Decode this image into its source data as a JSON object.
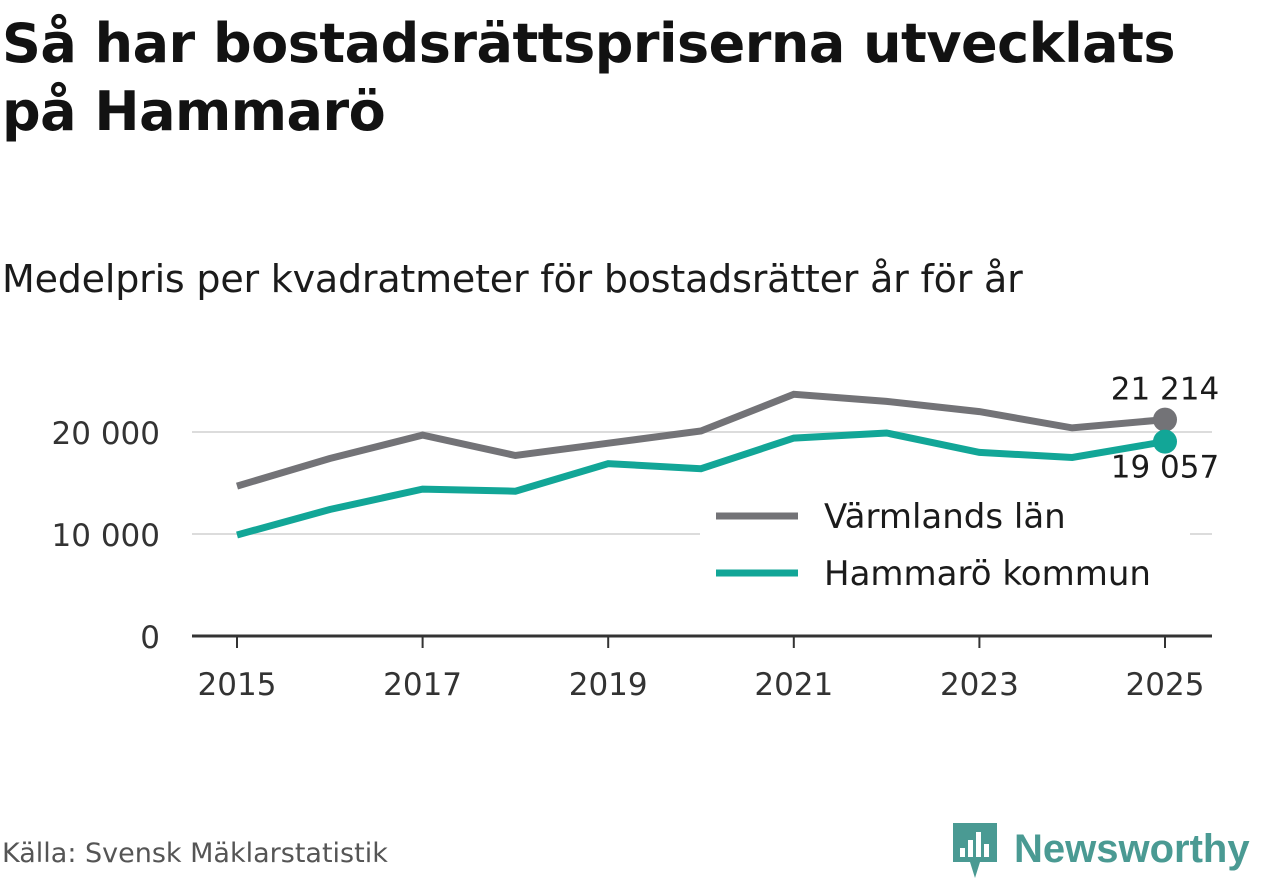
{
  "title": "Så har bostadsrättspriserna utvecklats på Hammarö",
  "subtitle": "Medelpris per kvadratmeter för bostadsrätter år för år",
  "source": "Källa: Svensk Mäklarstatistik",
  "brand": {
    "name": "Newsworthy",
    "icon": "newsworthy-logo-icon",
    "color": "#4a9a93"
  },
  "chart_data": {
    "type": "line",
    "x": [
      2015,
      2016,
      2017,
      2018,
      2019,
      2020,
      2021,
      2022,
      2023,
      2024,
      2025
    ],
    "series": [
      {
        "name": "Värmlands län",
        "color": "#737377",
        "values": [
          14700,
          17400,
          19700,
          17700,
          18900,
          20100,
          23700,
          23000,
          22000,
          20400,
          21214
        ],
        "end_label": "21 214"
      },
      {
        "name": "Hammarö kommun",
        "color": "#12a697",
        "values": [
          9900,
          12400,
          14400,
          14200,
          16900,
          16400,
          19400,
          19900,
          18000,
          17500,
          19057
        ],
        "end_label": "19 057"
      }
    ],
    "ylim": [
      0,
      25000
    ],
    "yticks": [
      0,
      10000,
      20000
    ],
    "ytick_labels": [
      "0",
      "10 000",
      "20 000"
    ],
    "xticks": [
      2015,
      2017,
      2019,
      2021,
      2023,
      2025
    ],
    "xtick_labels": [
      "2015",
      "2017",
      "2019",
      "2021",
      "2023",
      "2025"
    ],
    "grid": true,
    "legend": "right"
  }
}
